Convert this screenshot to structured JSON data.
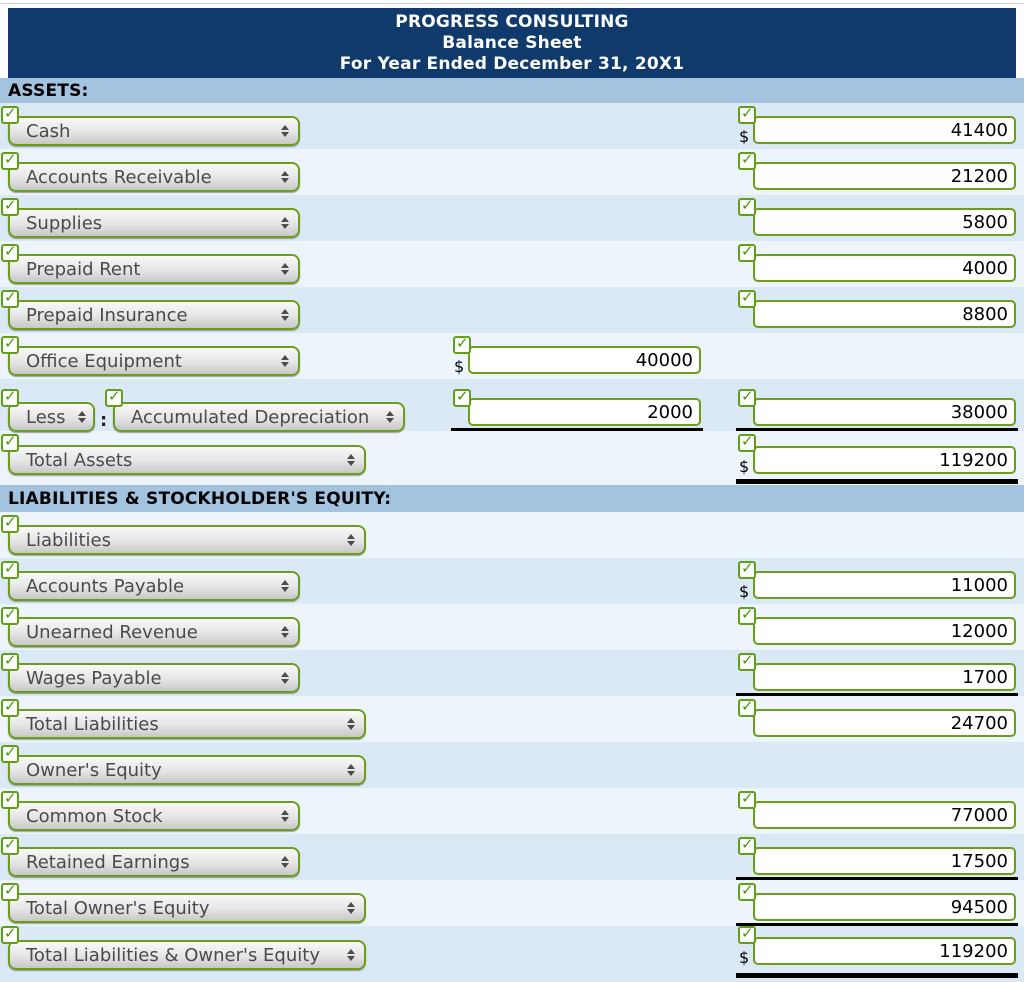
{
  "header": {
    "company": "PROGRESS CONSULTING",
    "statement": "Balance Sheet",
    "period": "For Year Ended December 31, 20X1"
  },
  "sections": {
    "assets": "ASSETS:",
    "liabilities": "LIABILITIES & STOCKHOLDER'S EQUITY:"
  },
  "colors": {
    "header_bg": "#0f3a6b",
    "band_bg": "#a4c3df",
    "row_dark": "#dbe8f6",
    "row_light": "#eef4fc",
    "widget_green": "#6b9e1b"
  },
  "rows": [
    {
      "label": "Cash",
      "value": "41400",
      "dollar": "$"
    },
    {
      "label": "Accounts Receivable",
      "value": "21200"
    },
    {
      "label": "Supplies",
      "value": "5800"
    },
    {
      "label": "Prepaid Rent",
      "value": "4000"
    },
    {
      "label": "Prepaid Insurance",
      "value": "8800"
    },
    {
      "label": "Office Equipment",
      "value": "40000",
      "dollar": "$"
    },
    {
      "label": "Less",
      "separator": ":",
      "label2": "Accumulated Depreciation",
      "value_mid": "2000",
      "value": "38000"
    },
    {
      "label": "Total Assets",
      "value": "119200",
      "dollar": "$"
    },
    {
      "label": "Liabilities"
    },
    {
      "label": "Accounts Payable",
      "value": "11000",
      "dollar": "$"
    },
    {
      "label": "Unearned Revenue",
      "value": "12000"
    },
    {
      "label": "Wages Payable",
      "value": "1700"
    },
    {
      "label": "Total Liabilities",
      "value": "24700"
    },
    {
      "label": "Owner's Equity"
    },
    {
      "label": "Common Stock",
      "value": "77000"
    },
    {
      "label": "Retained Earnings",
      "value": "17500"
    },
    {
      "label": "Total Owner's Equity",
      "value": "94500"
    },
    {
      "label": "Total Liabilities & Owner's Equity",
      "value": "119200",
      "dollar": "$"
    }
  ]
}
